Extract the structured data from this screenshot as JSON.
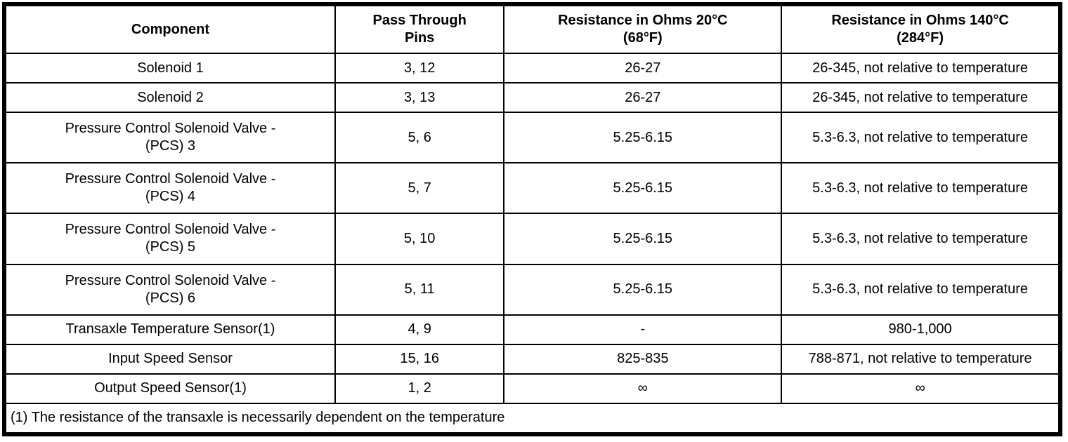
{
  "table": {
    "headers": {
      "component": "Component",
      "pins_line1": "Pass Through",
      "pins_line2": "Pins",
      "r20_line1": "Resistance in Ohms 20°C",
      "r20_line2": "(68°F)",
      "r140_line1": "Resistance in Ohms 140°C",
      "r140_line2": "(284°F)"
    },
    "rows": [
      {
        "component": "Solenoid 1",
        "pins": "3, 12",
        "r20": "26-27",
        "r140": "26-345, not relative to temperature"
      },
      {
        "component": "Solenoid 2",
        "pins": "3, 13",
        "r20": "26-27",
        "r140": "26-345, not relative to temperature"
      },
      {
        "component": "Pressure Control Solenoid Valve - (PCS) 3",
        "pins": "5, 6",
        "r20": "5.25-6.15",
        "r140": "5.3-6.3, not relative to temperature"
      },
      {
        "component": "Pressure Control Solenoid Valve - (PCS) 4",
        "pins": "5, 7",
        "r20": "5.25-6.15",
        "r140": "5.3-6.3, not relative to temperature"
      },
      {
        "component": "Pressure Control Solenoid Valve - (PCS) 5",
        "pins": "5, 10",
        "r20": "5.25-6.15",
        "r140": "5.3-6.3, not relative to temperature"
      },
      {
        "component": "Pressure Control Solenoid Valve - (PCS) 6",
        "pins": "5, 11",
        "r20": "5.25-6.15",
        "r140": "5.3-6.3, not relative to temperature"
      },
      {
        "component": "Transaxle Temperature Sensor(1)",
        "pins": "4, 9",
        "r20": "-",
        "r140": "980-1,000"
      },
      {
        "component": "Input Speed Sensor",
        "pins": "15, 16",
        "r20": "825-835",
        "r140": "788-871, not relative to temperature"
      },
      {
        "component": "Output Speed Sensor(1)",
        "pins": "1, 2",
        "r20": "∞",
        "r140": "∞"
      }
    ],
    "footnote": "(1) The resistance of the transaxle is necessarily dependent on the temperature"
  },
  "colors": {
    "border": "#000000",
    "background": "#ffffff",
    "text": "#000000"
  }
}
